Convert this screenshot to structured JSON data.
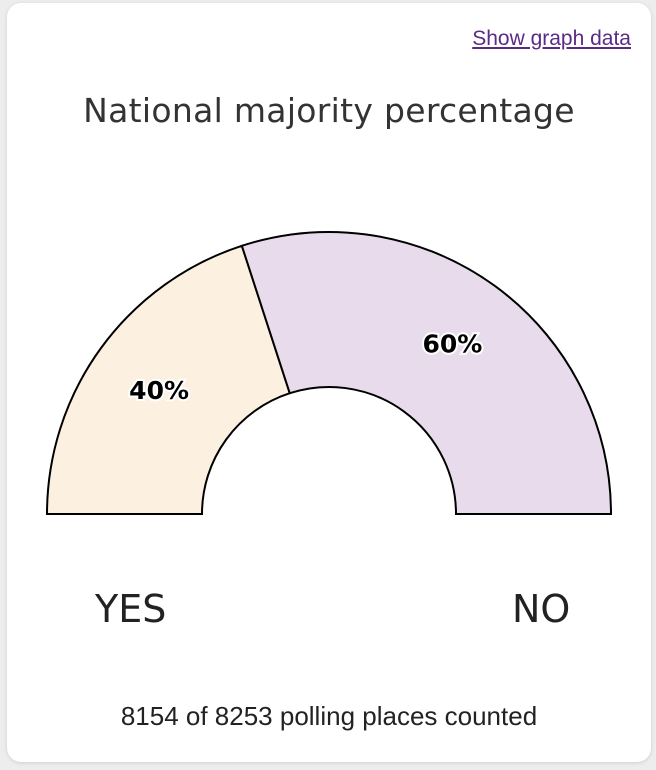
{
  "link": {
    "label": "Show graph data"
  },
  "chart_data": {
    "type": "pie",
    "variant": "half-donut",
    "title": "National majority percentage",
    "slices": [
      {
        "label": "YES",
        "value": 40,
        "display": "40%",
        "color": "#fcf0e0"
      },
      {
        "label": "NO",
        "value": 60,
        "display": "60%",
        "color": "#e8dcec"
      }
    ],
    "stroke_color": "#000000"
  },
  "labels": {
    "yes": "YES",
    "no": "NO"
  },
  "footer": {
    "counted": 8154,
    "total": 8253,
    "text": "8154 of 8253 polling places counted"
  }
}
